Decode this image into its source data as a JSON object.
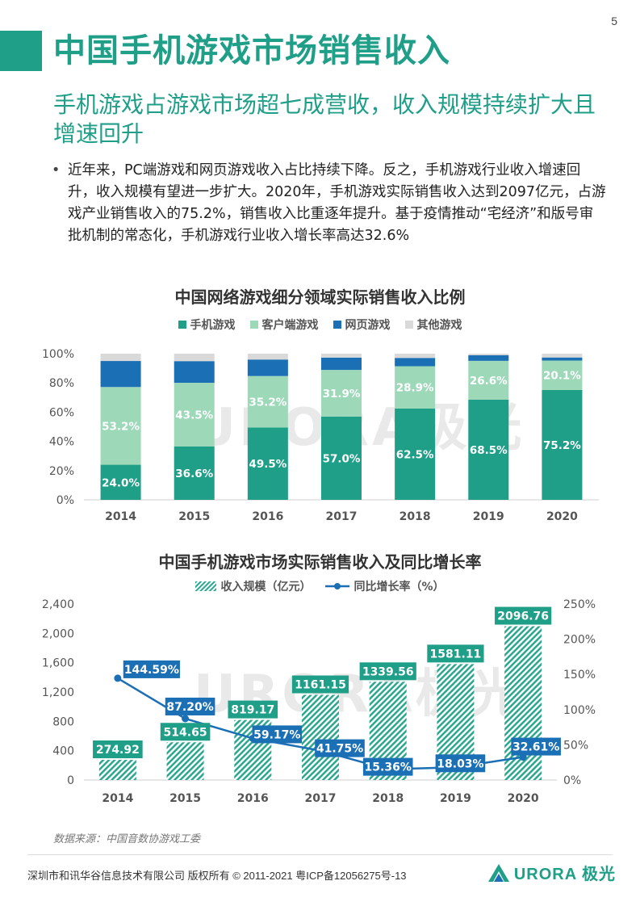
{
  "page_number": "5",
  "title": "中国手机游戏市场销售收入",
  "subtitle": "手机游戏占游戏市场超七成营收，收入规模持续扩大且增速回升",
  "bullet_text": "近年来，PC端游戏和网页游戏收入占比持续下降。反之，手机游戏行业收入增速回升，收入规模有望进一步扩大。2020年，手机游戏实际销售收入达到2097亿元，占游戏产业销售收入的75.2%，销售收入比重逐年提升。基于疫情推动“宅经济”和版号审批机制的常态化，手机游戏行业收入增长率高达32.6%",
  "watermark": "URORA极光",
  "colors": {
    "teal": "#1f9e88",
    "light_teal": "#9dd9b9",
    "blue": "#1b6fb5",
    "gray": "#d9d9d9"
  },
  "chart_data": [
    {
      "type": "bar",
      "stacked": true,
      "title": "中国网络游戏细分领域实际销售收入比例",
      "categories": [
        "2014",
        "2015",
        "2016",
        "2017",
        "2018",
        "2019",
        "2020"
      ],
      "series": [
        {
          "name": "手机游戏",
          "color": "#1f9e88",
          "values": [
            24.0,
            36.6,
            49.5,
            57.0,
            62.5,
            68.5,
            75.2
          ],
          "labels": [
            "24.0%",
            "36.6%",
            "49.5%",
            "57.0%",
            "62.5%",
            "68.5%",
            "75.2%"
          ]
        },
        {
          "name": "客户端游戏",
          "color": "#9dd9b9",
          "values": [
            53.2,
            43.5,
            35.2,
            31.9,
            28.9,
            26.6,
            20.1
          ],
          "labels": [
            "53.2%",
            "43.5%",
            "35.2%",
            "31.9%",
            "28.9%",
            "26.6%",
            "20.1%"
          ]
        },
        {
          "name": "网页游戏",
          "color": "#1b6fb5",
          "values": [
            17.8,
            14.8,
            11.3,
            8.4,
            5.7,
            3.8,
            2.1
          ]
        },
        {
          "name": "其他游戏",
          "color": "#d9d9d9",
          "values": [
            5.0,
            5.1,
            4.0,
            2.7,
            2.9,
            1.1,
            2.6
          ]
        }
      ],
      "yticks": [
        "0%",
        "20%",
        "40%",
        "60%",
        "80%",
        "100%"
      ],
      "ylim": [
        0,
        100
      ],
      "legend": "top"
    },
    {
      "type": "bar+line",
      "title": "中国手机游戏市场实际销售收入及同比增长率",
      "categories": [
        "2014",
        "2015",
        "2016",
        "2017",
        "2018",
        "2019",
        "2020"
      ],
      "bar_series": {
        "name": "收入规模（亿元）",
        "values": [
          274.92,
          514.65,
          819.17,
          1161.15,
          1339.56,
          1581.11,
          2096.76
        ],
        "labels": [
          "274.92",
          "514.65",
          "819.17",
          "1161.15",
          "1339.56",
          "1581.11",
          "2096.76"
        ]
      },
      "line_series": {
        "name": "同比增长率（%）",
        "values": [
          144.59,
          87.2,
          59.17,
          41.75,
          15.36,
          18.03,
          32.61
        ],
        "labels": [
          "144.59%",
          "87.20%",
          "59.17%",
          "41.75%",
          "15.36%",
          "18.03%",
          "32.61%"
        ]
      },
      "y_left_ticks": [
        "0",
        "400",
        "800",
        "1,200",
        "1,600",
        "2,000",
        "2,400"
      ],
      "y_left_lim": [
        0,
        2400
      ],
      "y_right_ticks": [
        "0%",
        "50%",
        "100%",
        "150%",
        "200%",
        "250%"
      ],
      "y_right_lim": [
        0,
        250
      ],
      "legend": "top"
    }
  ],
  "source": "数据来源：中国音数协游戏工委",
  "footer": "深圳市和讯华谷信息技术有限公司 版权所有 © 2011-2021 粤ICP备12056275号-13",
  "logo_text": "URORA 极光"
}
